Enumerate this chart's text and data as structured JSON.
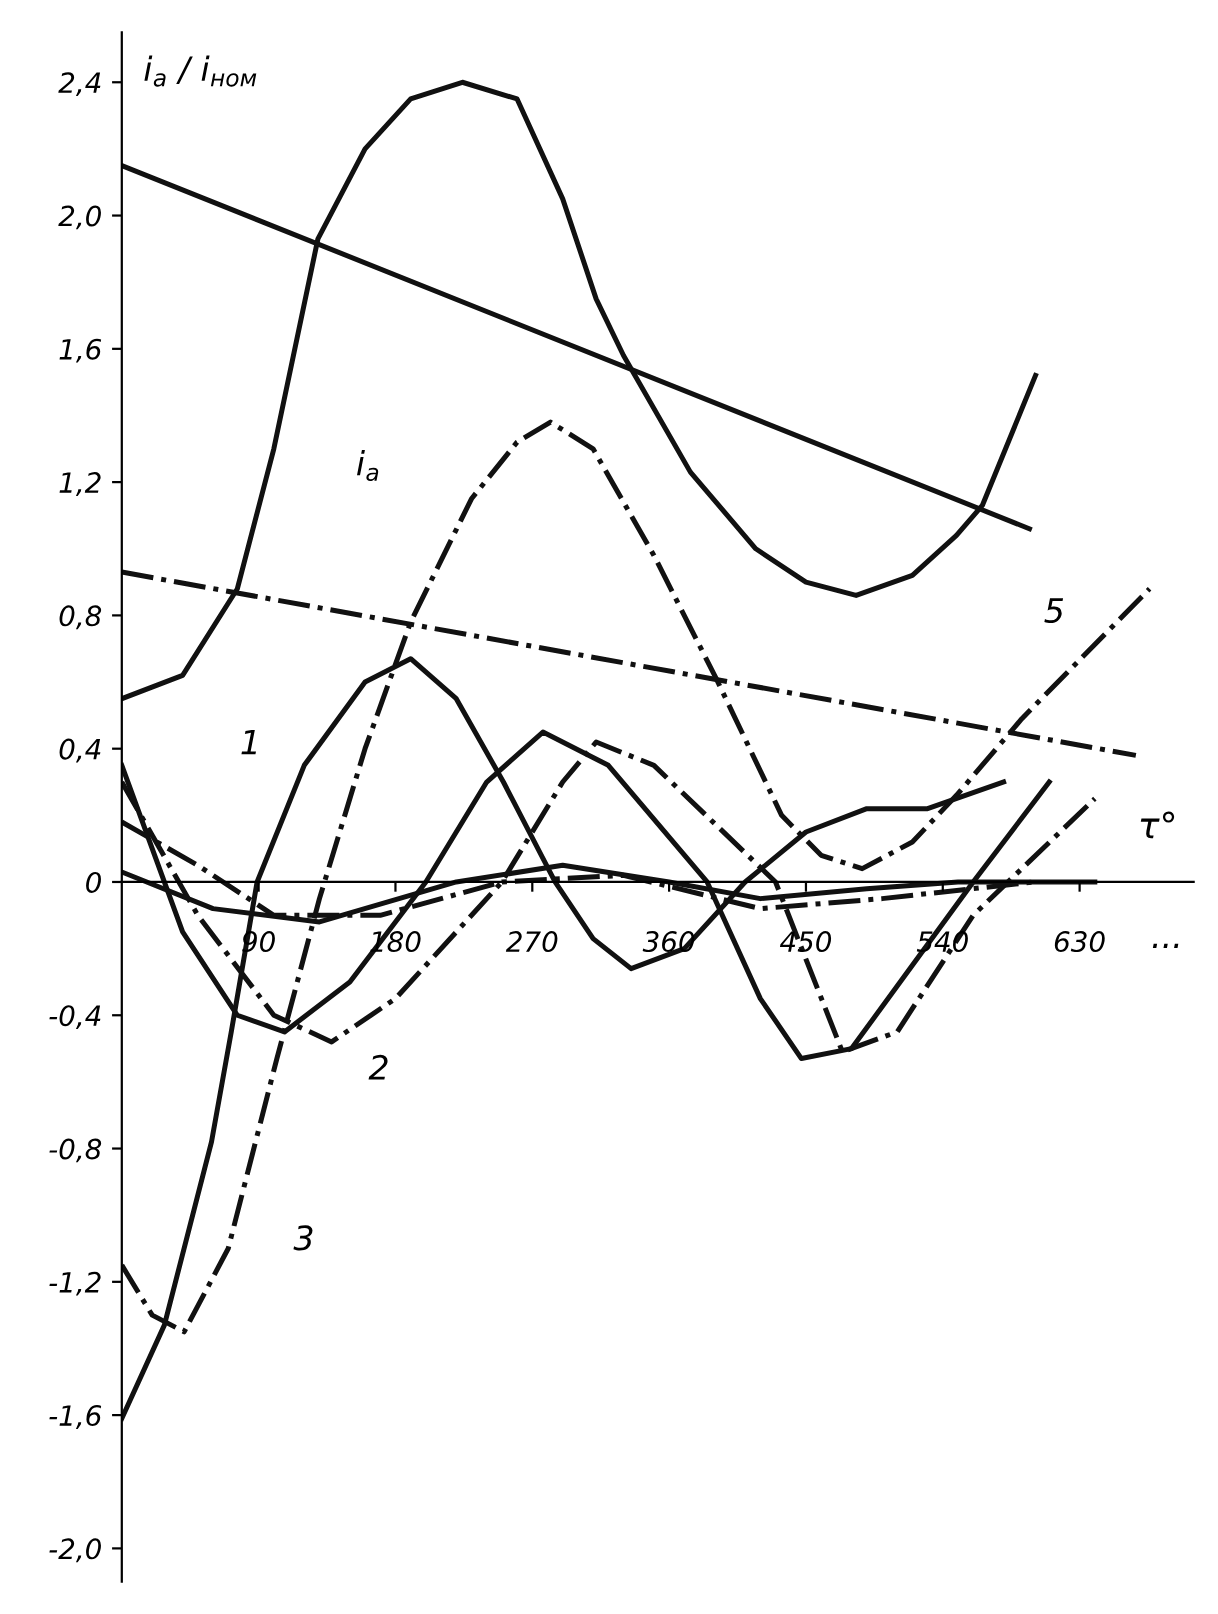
{
  "chart_data": {
    "type": "line",
    "ylabel": "i$_{a}$ / i$_{ном}$",
    "xlabel": "τ°",
    "xlim": [
      0,
      705
    ],
    "ylim": [
      -2.1,
      2.55
    ],
    "xticks": [
      90,
      180,
      270,
      360,
      450,
      540,
      630
    ],
    "yticks": [
      {
        "value": -2.0,
        "label": "-2,0"
      },
      {
        "value": -1.6,
        "label": "-1,6"
      },
      {
        "value": -1.2,
        "label": "-1,2"
      },
      {
        "value": -0.8,
        "label": "-0,8"
      },
      {
        "value": -0.4,
        "label": "-0,4"
      },
      0,
      {
        "value": 0.4,
        "label": "0,4"
      },
      {
        "value": 0.8,
        "label": "0,8"
      },
      {
        "value": 1.2,
        "label": "1,2"
      },
      {
        "value": 1.6,
        "label": "1,6"
      },
      {
        "value": 2.0,
        "label": "2,0"
      },
      {
        "value": 2.4,
        "label": "2,4"
      }
    ],
    "grid": false,
    "series": [
      {
        "color": "#111111",
        "line_style": "solid",
        "x": [
          0,
          40,
          76,
          100,
          129,
          160,
          190,
          224,
          260,
          290,
          312,
          330,
          374,
          417,
          450,
          483,
          520,
          549,
          566,
          601
        ],
        "values": [
          0.55,
          0.62,
          0.88,
          1.3,
          1.93,
          2.2,
          2.35,
          2.4,
          2.35,
          2.05,
          1.75,
          1.58,
          1.23,
          1.0,
          0.9,
          0.86,
          0.92,
          1.04,
          1.13,
          1.52
        ]
      },
      {
        "color": "#111111",
        "line_style": "solid",
        "x": [
          0,
          597
        ],
        "values": [
          2.15,
          1.06
        ]
      },
      {
        "color": "#111111",
        "line_style": "dashdot",
        "x": [
          0,
          667
        ],
        "values": [
          0.93,
          0.38
        ]
      },
      {
        "color": "#111111",
        "line_style": "dashdot",
        "x": [
          0,
          20,
          41,
          70,
          102,
          130,
          160,
          190,
          230,
          260,
          282,
          310,
          350,
          391,
          434,
          460,
          487,
          520,
          549,
          592,
          676
        ],
        "values": [
          -1.15,
          -1.3,
          -1.35,
          -1.1,
          -0.53,
          -0.05,
          0.4,
          0.78,
          1.15,
          1.32,
          1.38,
          1.3,
          0.98,
          0.61,
          0.2,
          0.08,
          0.04,
          0.12,
          0.26,
          0.49,
          0.88
        ]
      },
      {
        "color": "#111111",
        "line_style": "solid",
        "x": [
          0,
          28,
          59,
          72,
          89,
          120,
          160,
          190,
          220,
          251,
          285,
          310,
          335,
          370,
          410,
          450,
          490,
          530,
          580
        ],
        "values": [
          -1.61,
          -1.33,
          -0.78,
          -0.45,
          0.0,
          0.35,
          0.6,
          0.67,
          0.55,
          0.3,
          0.0,
          -0.17,
          -0.26,
          -0.2,
          0.0,
          0.15,
          0.22,
          0.22,
          0.3
        ]
      },
      {
        "color": "#111111",
        "line_style": "solid",
        "x": [
          0,
          40,
          76,
          107,
          150,
          200,
          240,
          277,
          320,
          385,
          420,
          447,
          480,
          520,
          560,
          610
        ],
        "values": [
          0.35,
          -0.15,
          -0.4,
          -0.45,
          -0.3,
          0.0,
          0.3,
          0.45,
          0.35,
          0.0,
          -0.35,
          -0.53,
          -0.5,
          -0.25,
          0.0,
          0.3
        ]
      },
      {
        "color": "#111111",
        "line_style": "dashdot",
        "x": [
          0,
          50,
          100,
          138,
          180,
          250,
          290,
          312,
          350,
          430,
          474,
          510,
          560,
          640
        ],
        "values": [
          0.3,
          -0.1,
          -0.4,
          -0.48,
          -0.35,
          0.0,
          0.3,
          0.42,
          0.35,
          0.0,
          -0.51,
          -0.45,
          -0.1,
          0.25
        ]
      },
      {
        "color": "#111111",
        "line_style": "solid",
        "x": [
          0,
          60,
          130,
          220,
          290,
          360,
          420,
          490,
          550,
          640
        ],
        "values": [
          0.03,
          -0.08,
          -0.12,
          0.0,
          0.05,
          0.0,
          -0.05,
          -0.02,
          0.0,
          0.0
        ]
      },
      {
        "color": "#111111",
        "line_style": "dashdot",
        "x": [
          0,
          50,
          100,
          170,
          250,
          330,
          420,
          500,
          600
        ],
        "values": [
          0.18,
          0.05,
          -0.1,
          -0.1,
          0.0,
          0.02,
          -0.08,
          -0.05,
          0.0
        ]
      }
    ],
    "annotations": [
      "1",
      "2",
      "3",
      "5",
      "i$_{a}$",
      "..."
    ]
  }
}
